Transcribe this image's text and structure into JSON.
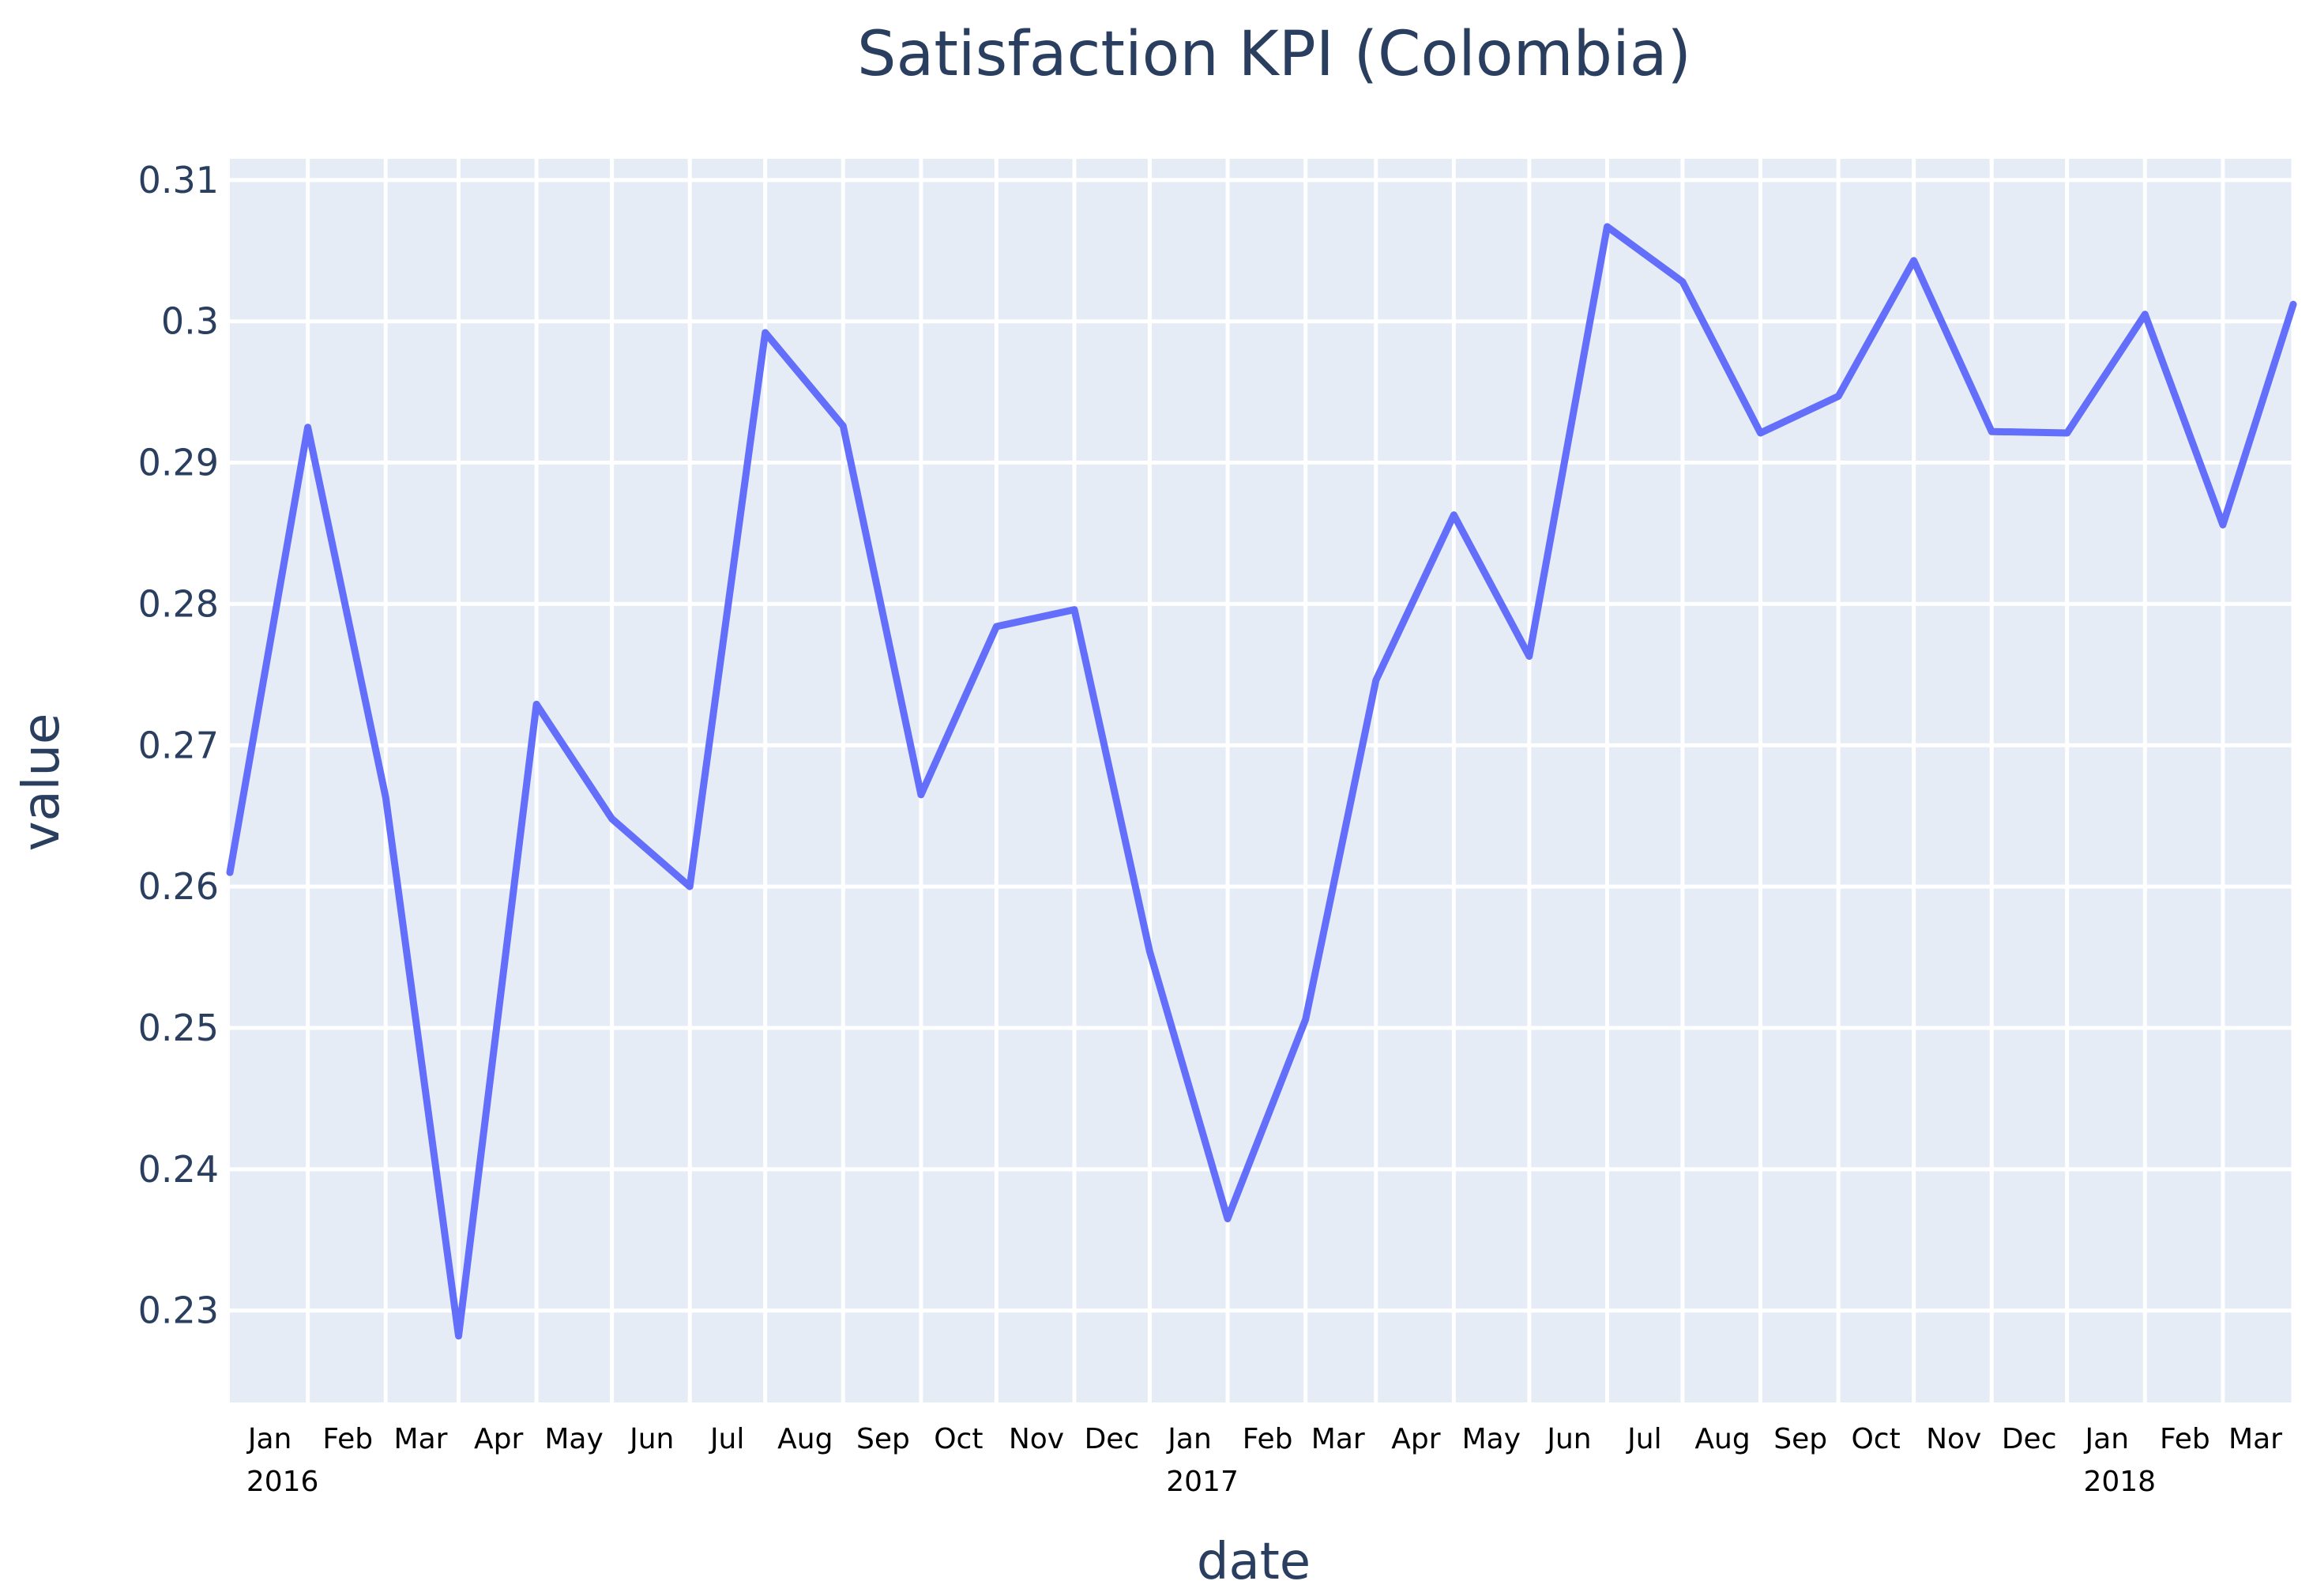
{
  "chart_data": {
    "type": "line",
    "title": "Satisfaction KPI (Colombia)",
    "xlabel": "date",
    "ylabel": "value",
    "ylim": [
      0.2235,
      0.3115
    ],
    "xlim": [
      "2015-12-01",
      "2018-03-01"
    ],
    "grid": true,
    "legend": "none",
    "colors": {
      "plot_bg": "#e5ecf6",
      "line": "#636efa",
      "grid": "#ffffff",
      "text": "#2a3f5f"
    },
    "y_ticks": [
      {
        "value": 0.23,
        "label": "0.23"
      },
      {
        "value": 0.24,
        "label": "0.24"
      },
      {
        "value": 0.25,
        "label": "0.25"
      },
      {
        "value": 0.26,
        "label": "0.26"
      },
      {
        "value": 0.27,
        "label": "0.27"
      },
      {
        "value": 0.28,
        "label": "0.28"
      },
      {
        "value": 0.29,
        "label": "0.29"
      },
      {
        "value": 0.3,
        "label": "0.3"
      },
      {
        "value": 0.31,
        "label": "0.31"
      }
    ],
    "x_ticks": [
      {
        "date": "2016-01-01",
        "label": "Jan",
        "year": "2016"
      },
      {
        "date": "2016-02-01",
        "label": "Feb"
      },
      {
        "date": "2016-03-01",
        "label": "Mar"
      },
      {
        "date": "2016-04-01",
        "label": "Apr"
      },
      {
        "date": "2016-05-01",
        "label": "May"
      },
      {
        "date": "2016-06-01",
        "label": "Jun"
      },
      {
        "date": "2016-07-01",
        "label": "Jul"
      },
      {
        "date": "2016-08-01",
        "label": "Aug"
      },
      {
        "date": "2016-09-01",
        "label": "Sep"
      },
      {
        "date": "2016-10-01",
        "label": "Oct"
      },
      {
        "date": "2016-11-01",
        "label": "Nov"
      },
      {
        "date": "2016-12-01",
        "label": "Dec"
      },
      {
        "date": "2017-01-01",
        "label": "Jan",
        "year": "2017"
      },
      {
        "date": "2017-02-01",
        "label": "Feb"
      },
      {
        "date": "2017-03-01",
        "label": "Mar"
      },
      {
        "date": "2017-04-01",
        "label": "Apr"
      },
      {
        "date": "2017-05-01",
        "label": "May"
      },
      {
        "date": "2017-06-01",
        "label": "Jun"
      },
      {
        "date": "2017-07-01",
        "label": "Jul"
      },
      {
        "date": "2017-08-01",
        "label": "Aug"
      },
      {
        "date": "2017-09-01",
        "label": "Sep"
      },
      {
        "date": "2017-10-01",
        "label": "Oct"
      },
      {
        "date": "2017-11-01",
        "label": "Nov"
      },
      {
        "date": "2017-12-01",
        "label": "Dec"
      },
      {
        "date": "2018-01-01",
        "label": "Jan",
        "year": "2018"
      },
      {
        "date": "2018-02-01",
        "label": "Feb"
      },
      {
        "date": "2018-03-01",
        "label": "Mar"
      }
    ],
    "series": [
      {
        "x": [
          "2015-12-01",
          "2016-01-01",
          "2016-02-01",
          "2016-03-01",
          "2016-04-01",
          "2016-05-01",
          "2016-06-01",
          "2016-07-01",
          "2016-08-01",
          "2016-09-01",
          "2016-10-01",
          "2016-11-01",
          "2016-12-01",
          "2017-01-01",
          "2017-02-01",
          "2017-03-01",
          "2017-04-01",
          "2017-05-01",
          "2017-06-01",
          "2017-07-01",
          "2017-08-01",
          "2017-09-01",
          "2017-10-01",
          "2017-11-01",
          "2017-12-01",
          "2018-01-01",
          "2018-02-01",
          "2018-03-01"
        ],
        "y": [
          0.261,
          0.2925,
          0.2663,
          0.2282,
          0.2729,
          0.2648,
          0.26,
          0.2992,
          0.2926,
          0.2665,
          0.2784,
          0.2796,
          0.2554,
          0.2365,
          0.2506,
          0.2746,
          0.2863,
          0.2763,
          0.3067,
          0.3028,
          0.2921,
          0.2947,
          0.3043,
          0.2922,
          0.2921,
          0.3005,
          0.2856,
          0.3012
        ]
      }
    ]
  }
}
